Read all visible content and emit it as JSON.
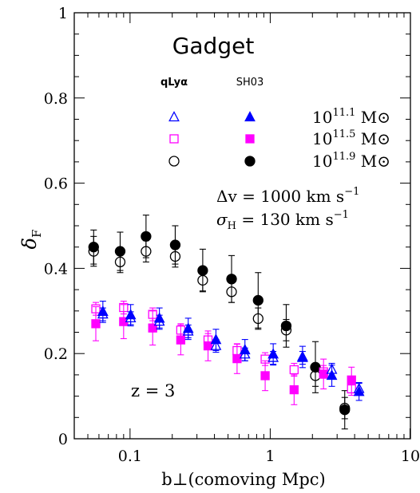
{
  "chart_data": {
    "type": "scatter",
    "title": "Gadget",
    "xlabel": "b⊥(comoving Mpc)",
    "ylabel": "δF",
    "xscale": "log",
    "xlim": [
      0.04,
      10
    ],
    "ylim": [
      0,
      1
    ],
    "x_ticklabels": [
      "0.1",
      "1",
      "10"
    ],
    "y_ticklabels": [
      "0",
      "0.2",
      "0.4",
      "0.6",
      "0.8",
      "1"
    ],
    "grid": false,
    "legend_headers": [
      "qLyα",
      "SH03"
    ],
    "legend_rows": [
      {
        "label": "10",
        "exp": "11.1",
        "unit": "M⊙",
        "color": "#0000ff",
        "marker": "triangle"
      },
      {
        "label": "10",
        "exp": "11.5",
        "unit": "M⊙",
        "color": "#ff00ff",
        "marker": "square"
      },
      {
        "label": "10",
        "exp": "11.9",
        "unit": "M⊙",
        "color": "#000000",
        "marker": "circle"
      }
    ],
    "annotations": {
      "dv": "Δv  =  1000  km  s",
      "dv_exp": "−1",
      "sigma": "σ",
      "sigma_sub": "H",
      "sigma_rest": "  =  130  km  s",
      "sigma_exp": "−1",
      "redshift": "z  =  3"
    },
    "series": [
      {
        "name": "qLyα 10^11.9",
        "marker": "circle",
        "filled": false,
        "color": "#000000",
        "points": [
          [
            0.055,
            0.44,
            0.035
          ],
          [
            0.085,
            0.415,
            0.025
          ],
          [
            0.13,
            0.44,
            0.025
          ],
          [
            0.21,
            0.428,
            0.025
          ],
          [
            0.33,
            0.372,
            0.025
          ],
          [
            0.53,
            0.345,
            0.025
          ],
          [
            0.82,
            0.282,
            0.025
          ],
          [
            1.3,
            0.255,
            0.025
          ],
          [
            2.1,
            0.148,
            0.025
          ],
          [
            3.4,
            0.072,
            0.025
          ]
        ]
      },
      {
        "name": "SH03 10^11.9",
        "marker": "circle",
        "filled": true,
        "color": "#000000",
        "points": [
          [
            0.055,
            0.45,
            0.04
          ],
          [
            0.085,
            0.44,
            0.045
          ],
          [
            0.13,
            0.475,
            0.05
          ],
          [
            0.21,
            0.455,
            0.045
          ],
          [
            0.33,
            0.395,
            0.05
          ],
          [
            0.53,
            0.375,
            0.055
          ],
          [
            0.82,
            0.325,
            0.065
          ],
          [
            1.3,
            0.265,
            0.05
          ],
          [
            2.1,
            0.168,
            0.06
          ],
          [
            3.4,
            0.068,
            0.045
          ]
        ]
      },
      {
        "name": "qLyα 10^11.5",
        "marker": "square",
        "filled": false,
        "color": "#ff00ff",
        "points": [
          [
            0.057,
            0.305,
            0.015
          ],
          [
            0.09,
            0.308,
            0.015
          ],
          [
            0.145,
            0.292,
            0.015
          ],
          [
            0.23,
            0.255,
            0.015
          ],
          [
            0.36,
            0.232,
            0.015
          ],
          [
            0.58,
            0.207,
            0.015
          ],
          [
            0.92,
            0.187,
            0.015
          ],
          [
            1.48,
            0.162,
            0.015
          ],
          [
            2.4,
            0.157,
            0.015
          ],
          [
            3.8,
            0.117,
            0.015
          ]
        ]
      },
      {
        "name": "SH03 10^11.5",
        "marker": "square",
        "filled": true,
        "color": "#ff00ff",
        "points": [
          [
            0.057,
            0.27,
            0.04
          ],
          [
            0.09,
            0.275,
            0.04
          ],
          [
            0.145,
            0.26,
            0.04
          ],
          [
            0.23,
            0.232,
            0.035
          ],
          [
            0.36,
            0.218,
            0.035
          ],
          [
            0.58,
            0.188,
            0.035
          ],
          [
            0.92,
            0.148,
            0.035
          ],
          [
            1.48,
            0.115,
            0.035
          ],
          [
            2.4,
            0.152,
            0.035
          ],
          [
            3.8,
            0.138,
            0.03
          ]
        ]
      },
      {
        "name": "qLyα 10^11.1",
        "marker": "triangle",
        "filled": false,
        "color": "#0000ff",
        "points": [
          [
            0.064,
            0.292,
            0.015
          ],
          [
            0.101,
            0.283,
            0.015
          ],
          [
            0.162,
            0.275,
            0.015
          ],
          [
            0.26,
            0.252,
            0.015
          ],
          [
            0.41,
            0.218,
            0.015
          ],
          [
            0.66,
            0.198,
            0.015
          ],
          [
            1.05,
            0.19,
            0.015
          ],
          [
            1.7,
            0.19,
            0.015
          ],
          [
            2.75,
            0.162,
            0.015
          ],
          [
            4.3,
            0.117,
            0.015
          ]
        ]
      },
      {
        "name": "SH03 10^11.1",
        "marker": "triangle",
        "filled": true,
        "color": "#0000ff",
        "points": [
          [
            0.064,
            0.298,
            0.025
          ],
          [
            0.101,
            0.29,
            0.025
          ],
          [
            0.162,
            0.282,
            0.025
          ],
          [
            0.26,
            0.258,
            0.025
          ],
          [
            0.41,
            0.232,
            0.025
          ],
          [
            0.66,
            0.208,
            0.025
          ],
          [
            1.05,
            0.198,
            0.025
          ],
          [
            1.7,
            0.192,
            0.025
          ],
          [
            2.75,
            0.148,
            0.025
          ],
          [
            4.3,
            0.11,
            0.02
          ]
        ]
      }
    ]
  }
}
